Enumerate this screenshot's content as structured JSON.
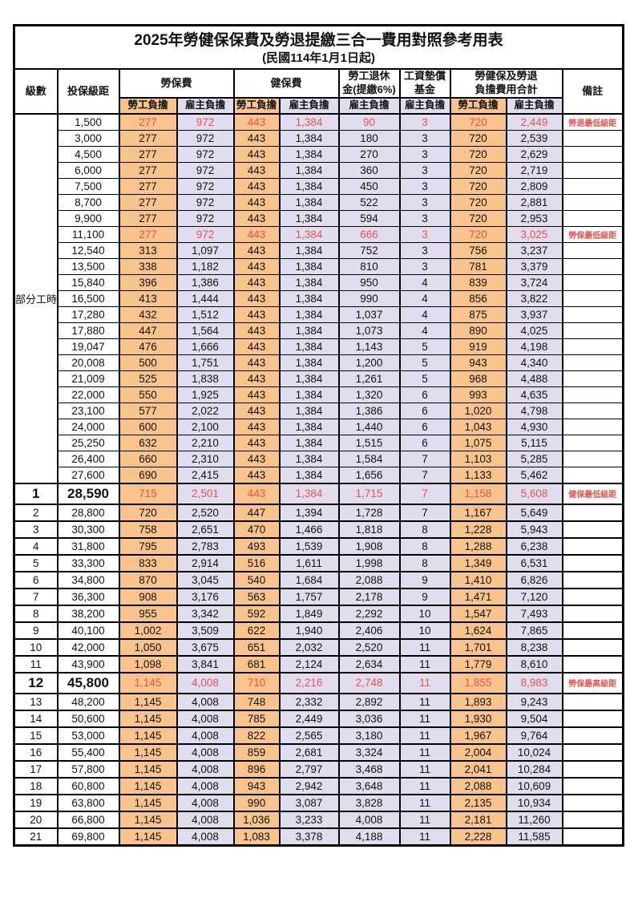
{
  "title": "2025年勞健保保費及勞退提繳三合一費用對照參考用表",
  "subtitle": "(民國114年1月1日起)",
  "colors": {
    "employee_fill": "#f9c48b",
    "employer_fill": "#e1ddee",
    "highlight_text": "#e9524e",
    "border": "#000000"
  },
  "columns": {
    "level": "級數",
    "bracket": "投保級距",
    "labor_fee": "勞保費",
    "health_fee": "健保費",
    "pension_line1": "勞工退休",
    "pension_line2": "金(提繳6%)",
    "fund_line1": "工資墊償",
    "fund_line2": "基金",
    "total_line1": "勞健保及勞退",
    "total_line2": "負擔費用合計",
    "remark": "備註",
    "employee_share": "勞工負擔",
    "employer_share": "雇主負擔"
  },
  "part_time_label": "部分工時",
  "rows": [
    {
      "level": "",
      "bracket": "1,500",
      "values": [
        "277",
        "972",
        "443",
        "1,384",
        "90",
        "3",
        "720",
        "2,449"
      ],
      "remark": "勞退最低級距",
      "red": true,
      "big": false
    },
    {
      "level": "",
      "bracket": "3,000",
      "values": [
        "277",
        "972",
        "443",
        "1,384",
        "180",
        "3",
        "720",
        "2,539"
      ],
      "remark": "",
      "red": false,
      "big": false
    },
    {
      "level": "",
      "bracket": "4,500",
      "values": [
        "277",
        "972",
        "443",
        "1,384",
        "270",
        "3",
        "720",
        "2,629"
      ],
      "remark": "",
      "red": false,
      "big": false
    },
    {
      "level": "",
      "bracket": "6,000",
      "values": [
        "277",
        "972",
        "443",
        "1,384",
        "360",
        "3",
        "720",
        "2,719"
      ],
      "remark": "",
      "red": false,
      "big": false
    },
    {
      "level": "",
      "bracket": "7,500",
      "values": [
        "277",
        "972",
        "443",
        "1,384",
        "450",
        "3",
        "720",
        "2,809"
      ],
      "remark": "",
      "red": false,
      "big": false
    },
    {
      "level": "",
      "bracket": "8,700",
      "values": [
        "277",
        "972",
        "443",
        "1,384",
        "522",
        "3",
        "720",
        "2,881"
      ],
      "remark": "",
      "red": false,
      "big": false
    },
    {
      "level": "",
      "bracket": "9,900",
      "values": [
        "277",
        "972",
        "443",
        "1,384",
        "594",
        "3",
        "720",
        "2,953"
      ],
      "remark": "",
      "red": false,
      "big": false
    },
    {
      "level": "",
      "bracket": "11,100",
      "values": [
        "277",
        "972",
        "443",
        "1,384",
        "666",
        "3",
        "720",
        "3,025"
      ],
      "remark": "勞保最低級距",
      "red": true,
      "big": false
    },
    {
      "level": "",
      "bracket": "12,540",
      "values": [
        "313",
        "1,097",
        "443",
        "1,384",
        "752",
        "3",
        "756",
        "3,237"
      ],
      "remark": "",
      "red": false,
      "big": false
    },
    {
      "level": "",
      "bracket": "13,500",
      "values": [
        "338",
        "1,182",
        "443",
        "1,384",
        "810",
        "3",
        "781",
        "3,379"
      ],
      "remark": "",
      "red": false,
      "big": false
    },
    {
      "level": "",
      "bracket": "15,840",
      "values": [
        "396",
        "1,386",
        "443",
        "1,384",
        "950",
        "4",
        "839",
        "3,724"
      ],
      "remark": "",
      "red": false,
      "big": false
    },
    {
      "level": "",
      "bracket": "16,500",
      "values": [
        "413",
        "1,444",
        "443",
        "1,384",
        "990",
        "4",
        "856",
        "3,822"
      ],
      "remark": "",
      "red": false,
      "big": false
    },
    {
      "level": "",
      "bracket": "17,280",
      "values": [
        "432",
        "1,512",
        "443",
        "1,384",
        "1,037",
        "4",
        "875",
        "3,937"
      ],
      "remark": "",
      "red": false,
      "big": false
    },
    {
      "level": "",
      "bracket": "17,880",
      "values": [
        "447",
        "1,564",
        "443",
        "1,384",
        "1,073",
        "4",
        "890",
        "4,025"
      ],
      "remark": "",
      "red": false,
      "big": false
    },
    {
      "level": "",
      "bracket": "19,047",
      "values": [
        "476",
        "1,666",
        "443",
        "1,384",
        "1,143",
        "5",
        "919",
        "4,198"
      ],
      "remark": "",
      "red": false,
      "big": false
    },
    {
      "level": "",
      "bracket": "20,008",
      "values": [
        "500",
        "1,751",
        "443",
        "1,384",
        "1,200",
        "5",
        "943",
        "4,340"
      ],
      "remark": "",
      "red": false,
      "big": false
    },
    {
      "level": "",
      "bracket": "21,009",
      "values": [
        "525",
        "1,838",
        "443",
        "1,384",
        "1,261",
        "5",
        "968",
        "4,488"
      ],
      "remark": "",
      "red": false,
      "big": false
    },
    {
      "level": "",
      "bracket": "22,000",
      "values": [
        "550",
        "1,925",
        "443",
        "1,384",
        "1,320",
        "6",
        "993",
        "4,635"
      ],
      "remark": "",
      "red": false,
      "big": false
    },
    {
      "level": "",
      "bracket": "23,100",
      "values": [
        "577",
        "2,022",
        "443",
        "1,384",
        "1,386",
        "6",
        "1,020",
        "4,798"
      ],
      "remark": "",
      "red": false,
      "big": false
    },
    {
      "level": "",
      "bracket": "24,000",
      "values": [
        "600",
        "2,100",
        "443",
        "1,384",
        "1,440",
        "6",
        "1,043",
        "4,930"
      ],
      "remark": "",
      "red": false,
      "big": false
    },
    {
      "level": "",
      "bracket": "25,250",
      "values": [
        "632",
        "2,210",
        "443",
        "1,384",
        "1,515",
        "6",
        "1,075",
        "5,115"
      ],
      "remark": "",
      "red": false,
      "big": false
    },
    {
      "level": "",
      "bracket": "26,400",
      "values": [
        "660",
        "2,310",
        "443",
        "1,384",
        "1,584",
        "7",
        "1,103",
        "5,285"
      ],
      "remark": "",
      "red": false,
      "big": false
    },
    {
      "level": "",
      "bracket": "27,600",
      "values": [
        "690",
        "2,415",
        "443",
        "1,384",
        "1,656",
        "7",
        "1,133",
        "5,462"
      ],
      "remark": "",
      "red": false,
      "big": false
    },
    {
      "level": "1",
      "bracket": "28,590",
      "values": [
        "715",
        "2,501",
        "443",
        "1,384",
        "1,715",
        "7",
        "1,158",
        "5,608"
      ],
      "remark": "健保最低級距",
      "red": true,
      "big": true
    },
    {
      "level": "2",
      "bracket": "28,800",
      "values": [
        "720",
        "2,520",
        "447",
        "1,394",
        "1,728",
        "7",
        "1,167",
        "5,649"
      ],
      "remark": "",
      "red": false,
      "big": false
    },
    {
      "level": "3",
      "bracket": "30,300",
      "values": [
        "758",
        "2,651",
        "470",
        "1,466",
        "1,818",
        "8",
        "1,228",
        "5,943"
      ],
      "remark": "",
      "red": false,
      "big": false
    },
    {
      "level": "4",
      "bracket": "31,800",
      "values": [
        "795",
        "2,783",
        "493",
        "1,539",
        "1,908",
        "8",
        "1,288",
        "6,238"
      ],
      "remark": "",
      "red": false,
      "big": false
    },
    {
      "level": "5",
      "bracket": "33,300",
      "values": [
        "833",
        "2,914",
        "516",
        "1,611",
        "1,998",
        "8",
        "1,349",
        "6,531"
      ],
      "remark": "",
      "red": false,
      "big": false
    },
    {
      "level": "6",
      "bracket": "34,800",
      "values": [
        "870",
        "3,045",
        "540",
        "1,684",
        "2,088",
        "9",
        "1,410",
        "6,826"
      ],
      "remark": "",
      "red": false,
      "big": false
    },
    {
      "level": "7",
      "bracket": "36,300",
      "values": [
        "908",
        "3,176",
        "563",
        "1,757",
        "2,178",
        "9",
        "1,471",
        "7,120"
      ],
      "remark": "",
      "red": false,
      "big": false
    },
    {
      "level": "8",
      "bracket": "38,200",
      "values": [
        "955",
        "3,342",
        "592",
        "1,849",
        "2,292",
        "10",
        "1,547",
        "7,493"
      ],
      "remark": "",
      "red": false,
      "big": false
    },
    {
      "level": "9",
      "bracket": "40,100",
      "values": [
        "1,002",
        "3,509",
        "622",
        "1,940",
        "2,406",
        "10",
        "1,624",
        "7,865"
      ],
      "remark": "",
      "red": false,
      "big": false
    },
    {
      "level": "10",
      "bracket": "42,000",
      "values": [
        "1,050",
        "3,675",
        "651",
        "2,032",
        "2,520",
        "11",
        "1,701",
        "8,238"
      ],
      "remark": "",
      "red": false,
      "big": false
    },
    {
      "level": "11",
      "bracket": "43,900",
      "values": [
        "1,098",
        "3,841",
        "681",
        "2,124",
        "2,634",
        "11",
        "1,779",
        "8,610"
      ],
      "remark": "",
      "red": false,
      "big": false
    },
    {
      "level": "12",
      "bracket": "45,800",
      "values": [
        "1,145",
        "4,008",
        "710",
        "2,216",
        "2,748",
        "11",
        "1,855",
        "8,983"
      ],
      "remark": "勞保最高級距",
      "red": true,
      "big": true
    },
    {
      "level": "13",
      "bracket": "48,200",
      "values": [
        "1,145",
        "4,008",
        "748",
        "2,332",
        "2,892",
        "11",
        "1,893",
        "9,243"
      ],
      "remark": "",
      "red": false,
      "big": false
    },
    {
      "level": "14",
      "bracket": "50,600",
      "values": [
        "1,145",
        "4,008",
        "785",
        "2,449",
        "3,036",
        "11",
        "1,930",
        "9,504"
      ],
      "remark": "",
      "red": false,
      "big": false
    },
    {
      "level": "15",
      "bracket": "53,000",
      "values": [
        "1,145",
        "4,008",
        "822",
        "2,565",
        "3,180",
        "11",
        "1,967",
        "9,764"
      ],
      "remark": "",
      "red": false,
      "big": false
    },
    {
      "level": "16",
      "bracket": "55,400",
      "values": [
        "1,145",
        "4,008",
        "859",
        "2,681",
        "3,324",
        "11",
        "2,004",
        "10,024"
      ],
      "remark": "",
      "red": false,
      "big": false
    },
    {
      "level": "17",
      "bracket": "57,800",
      "values": [
        "1,145",
        "4,008",
        "896",
        "2,797",
        "3,468",
        "11",
        "2,041",
        "10,284"
      ],
      "remark": "",
      "red": false,
      "big": false
    },
    {
      "level": "18",
      "bracket": "60,800",
      "values": [
        "1,145",
        "4,008",
        "943",
        "2,942",
        "3,648",
        "11",
        "2,088",
        "10,609"
      ],
      "remark": "",
      "red": false,
      "big": false
    },
    {
      "level": "19",
      "bracket": "63,800",
      "values": [
        "1,145",
        "4,008",
        "990",
        "3,087",
        "3,828",
        "11",
        "2,135",
        "10,934"
      ],
      "remark": "",
      "red": false,
      "big": false
    },
    {
      "level": "20",
      "bracket": "66,800",
      "values": [
        "1,145",
        "4,008",
        "1,036",
        "3,233",
        "4,008",
        "11",
        "2,181",
        "11,260"
      ],
      "remark": "",
      "red": false,
      "big": false
    },
    {
      "level": "21",
      "bracket": "69,800",
      "values": [
        "1,145",
        "4,008",
        "1,083",
        "3,378",
        "4,188",
        "11",
        "2,228",
        "11,585"
      ],
      "remark": "",
      "red": false,
      "big": false
    }
  ]
}
